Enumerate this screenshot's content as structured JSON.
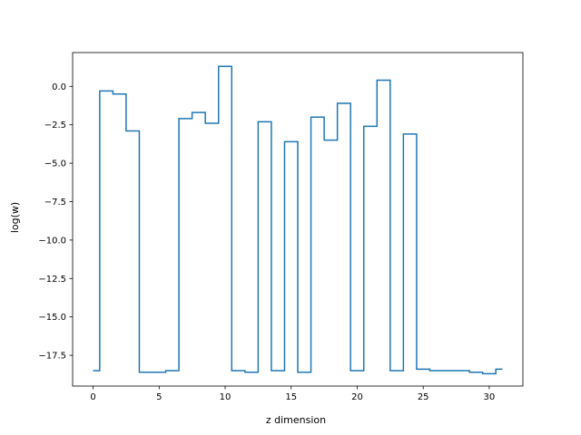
{
  "chart_data": {
    "type": "line",
    "drawstyle": "steps-mid",
    "title": "",
    "xlabel": "z dimension",
    "ylabel": "log(w)",
    "xlim": [
      -1.55,
      32.55
    ],
    "ylim": [
      -19.5,
      2.2
    ],
    "xticks": [
      0,
      5,
      10,
      15,
      20,
      25,
      30
    ],
    "yticks": [
      0.0,
      -2.5,
      -5.0,
      -7.5,
      -10.0,
      -12.5,
      -15.0,
      -17.5
    ],
    "ytick_labels": [
      "0.0",
      "−2.5",
      "−5.0",
      "−7.5",
      "−10.0",
      "−12.5",
      "−15.0",
      "−17.5"
    ],
    "grid": false,
    "line_color": "#1f77b4",
    "series": [
      {
        "x": [
          0,
          1,
          2,
          3,
          4,
          5,
          6,
          7,
          8,
          9,
          10,
          11,
          12,
          13,
          14,
          15,
          16,
          17,
          18,
          19,
          20,
          21,
          22,
          23,
          24,
          25,
          26,
          27,
          28,
          29,
          30,
          31
        ],
        "values": [
          -18.5,
          -0.3,
          -0.5,
          -2.9,
          -18.6,
          -18.6,
          -18.5,
          -2.1,
          -1.7,
          -2.4,
          1.3,
          -18.5,
          -18.6,
          -2.3,
          -18.5,
          -3.6,
          -18.6,
          -2.0,
          -3.5,
          -1.1,
          -18.5,
          -2.6,
          0.4,
          -18.5,
          -3.1,
          -18.4,
          -18.5,
          -18.5,
          -18.5,
          -18.6,
          -18.7,
          -18.4
        ]
      }
    ]
  }
}
